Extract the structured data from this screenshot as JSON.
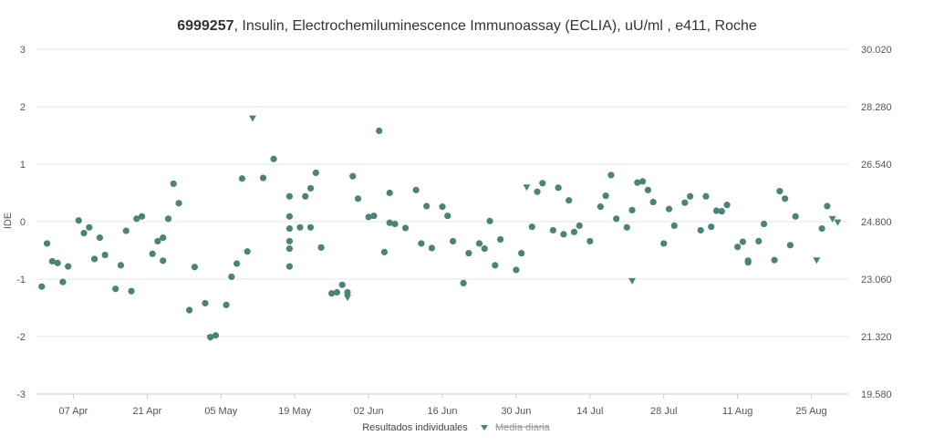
{
  "chart_data": {
    "type": "scatter",
    "title_id": "6999257",
    "title_rest": ", Insulin, Electrochemiluminescence Immunoassay (ECLIA), uU/ml , e411, Roche",
    "ylabel": "IDE",
    "ylim": [
      -3,
      3
    ],
    "y_ticks": [
      "3",
      "2",
      "1",
      "0",
      "-1",
      "-2",
      "-3"
    ],
    "y2_ticks": [
      "30.020",
      "28.280",
      "26.540",
      "24.800",
      "23.060",
      "21.320",
      "19.580"
    ],
    "x_ticks": [
      "07 Apr",
      "21 Apr",
      "05 May",
      "19 May",
      "02 Jun",
      "16 Jun",
      "30 Jun",
      "14 Jul",
      "28 Jul",
      "11 Aug",
      "25 Aug"
    ],
    "x_range": [
      "2025-03-31",
      "2025-09-01"
    ],
    "grid": true,
    "legend": {
      "position": "bottom-center",
      "items": [
        {
          "label": "Resultados individuales",
          "shown": true
        },
        {
          "label": "Media diaria",
          "shown": false
        }
      ]
    },
    "colors": {
      "points": "#4a8378",
      "grid": "#e6e6e6",
      "axis": "#cccccc"
    },
    "series": [
      {
        "name": "Resultados individuales",
        "marker": "circle",
        "points": [
          [
            "2025-04-01",
            -1.13
          ],
          [
            "2025-04-02",
            -0.38
          ],
          [
            "2025-04-03",
            -0.69
          ],
          [
            "2025-04-04",
            -0.72
          ],
          [
            "2025-04-05",
            -1.05
          ],
          [
            "2025-04-06",
            -0.78
          ],
          [
            "2025-04-08",
            0.02
          ],
          [
            "2025-04-09",
            -0.2
          ],
          [
            "2025-04-10",
            -0.1
          ],
          [
            "2025-04-11",
            -0.65
          ],
          [
            "2025-04-12",
            -0.28
          ],
          [
            "2025-04-13",
            -0.58
          ],
          [
            "2025-04-15",
            -1.17
          ],
          [
            "2025-04-16",
            -0.76
          ],
          [
            "2025-04-17",
            -0.16
          ],
          [
            "2025-04-18",
            -1.21
          ],
          [
            "2025-04-19",
            0.05
          ],
          [
            "2025-04-20",
            0.09
          ],
          [
            "2025-04-22",
            -0.56
          ],
          [
            "2025-04-23",
            -0.34
          ],
          [
            "2025-04-24",
            -0.28
          ],
          [
            "2025-04-24",
            -0.68
          ],
          [
            "2025-04-25",
            0.05
          ],
          [
            "2025-04-26",
            0.66
          ],
          [
            "2025-04-27",
            0.32
          ],
          [
            "2025-04-29",
            -1.54
          ],
          [
            "2025-04-30",
            -0.79
          ],
          [
            "2025-05-02",
            -1.42
          ],
          [
            "2025-05-03",
            -2.01
          ],
          [
            "2025-05-04",
            -1.98
          ],
          [
            "2025-05-06",
            -1.45
          ],
          [
            "2025-05-07",
            -0.96
          ],
          [
            "2025-05-08",
            -0.73
          ],
          [
            "2025-05-09",
            0.75
          ],
          [
            "2025-05-10",
            -0.52
          ],
          [
            "2025-05-13",
            0.76
          ],
          [
            "2025-05-15",
            1.09
          ],
          [
            "2025-05-18",
            0.44
          ],
          [
            "2025-05-18",
            0.09
          ],
          [
            "2025-05-18",
            -0.12
          ],
          [
            "2025-05-18",
            -0.34
          ],
          [
            "2025-05-18",
            -0.47
          ],
          [
            "2025-05-18",
            -0.78
          ],
          [
            "2025-05-20",
            -0.1
          ],
          [
            "2025-05-21",
            0.44
          ],
          [
            "2025-05-22",
            0.58
          ],
          [
            "2025-05-22",
            -0.1
          ],
          [
            "2025-05-23",
            0.85
          ],
          [
            "2025-05-24",
            -0.45
          ],
          [
            "2025-05-26",
            -1.25
          ],
          [
            "2025-05-27",
            -1.23
          ],
          [
            "2025-05-28",
            -1.1
          ],
          [
            "2025-05-29",
            -1.23
          ],
          [
            "2025-05-30",
            0.79
          ],
          [
            "2025-05-31",
            0.4
          ],
          [
            "2025-06-02",
            0.08
          ],
          [
            "2025-06-03",
            0.1
          ],
          [
            "2025-06-04",
            1.58
          ],
          [
            "2025-06-05",
            -0.53
          ],
          [
            "2025-06-06",
            0.5
          ],
          [
            "2025-06-06",
            -0.02
          ],
          [
            "2025-06-07",
            -0.04
          ],
          [
            "2025-06-09",
            -0.11
          ],
          [
            "2025-06-11",
            0.55
          ],
          [
            "2025-06-12",
            -0.38
          ],
          [
            "2025-06-13",
            0.27
          ],
          [
            "2025-06-14",
            -0.46
          ],
          [
            "2025-06-16",
            0.26
          ],
          [
            "2025-06-17",
            0.1
          ],
          [
            "2025-06-18",
            -0.34
          ],
          [
            "2025-06-20",
            -1.07
          ],
          [
            "2025-06-21",
            -0.55
          ],
          [
            "2025-06-23",
            -0.38
          ],
          [
            "2025-06-24",
            -0.47
          ],
          [
            "2025-06-25",
            0.01
          ],
          [
            "2025-06-26",
            -0.76
          ],
          [
            "2025-06-27",
            -0.31
          ],
          [
            "2025-06-30",
            -0.84
          ],
          [
            "2025-07-01",
            -0.55
          ],
          [
            "2025-07-03",
            -0.09
          ],
          [
            "2025-07-04",
            0.52
          ],
          [
            "2025-07-05",
            0.67
          ],
          [
            "2025-07-07",
            -0.15
          ],
          [
            "2025-07-08",
            0.59
          ],
          [
            "2025-07-09",
            -0.22
          ],
          [
            "2025-07-10",
            0.37
          ],
          [
            "2025-07-11",
            -0.18
          ],
          [
            "2025-07-12",
            -0.07
          ],
          [
            "2025-07-14",
            -0.34
          ],
          [
            "2025-07-16",
            0.26
          ],
          [
            "2025-07-17",
            0.45
          ],
          [
            "2025-07-18",
            0.81
          ],
          [
            "2025-07-19",
            0.05
          ],
          [
            "2025-07-21",
            -0.1
          ],
          [
            "2025-07-22",
            0.2
          ],
          [
            "2025-07-23",
            0.68
          ],
          [
            "2025-07-24",
            0.7
          ],
          [
            "2025-07-25",
            0.55
          ],
          [
            "2025-07-26",
            0.34
          ],
          [
            "2025-07-28",
            -0.38
          ],
          [
            "2025-07-29",
            0.22
          ],
          [
            "2025-07-30",
            -0.07
          ],
          [
            "2025-08-01",
            0.33
          ],
          [
            "2025-08-02",
            0.44
          ],
          [
            "2025-08-04",
            -0.15
          ],
          [
            "2025-08-05",
            0.44
          ],
          [
            "2025-08-06",
            -0.09
          ],
          [
            "2025-08-07",
            0.19
          ],
          [
            "2025-08-08",
            0.18
          ],
          [
            "2025-08-09",
            0.29
          ],
          [
            "2025-08-11",
            -0.44
          ],
          [
            "2025-08-12",
            -0.35
          ],
          [
            "2025-08-13",
            -0.68
          ],
          [
            "2025-08-13",
            -0.71
          ],
          [
            "2025-08-15",
            -0.34
          ],
          [
            "2025-08-16",
            -0.04
          ],
          [
            "2025-08-18",
            -0.67
          ],
          [
            "2025-08-19",
            0.53
          ],
          [
            "2025-08-20",
            0.4
          ],
          [
            "2025-08-21",
            -0.41
          ],
          [
            "2025-08-22",
            0.09
          ],
          [
            "2025-08-27",
            -0.12
          ],
          [
            "2025-08-28",
            0.27
          ]
        ]
      },
      {
        "name": "Media diaria",
        "marker": "triangle-down",
        "points": [
          [
            "2025-05-03",
            -2.02
          ],
          [
            "2025-05-11",
            1.8
          ],
          [
            "2025-05-29",
            -1.32
          ],
          [
            "2025-07-02",
            0.6
          ],
          [
            "2025-07-22",
            -1.03
          ],
          [
            "2025-08-26",
            -0.67
          ],
          [
            "2025-08-29",
            0.05
          ],
          [
            "2025-08-30",
            -0.01
          ]
        ]
      }
    ]
  }
}
